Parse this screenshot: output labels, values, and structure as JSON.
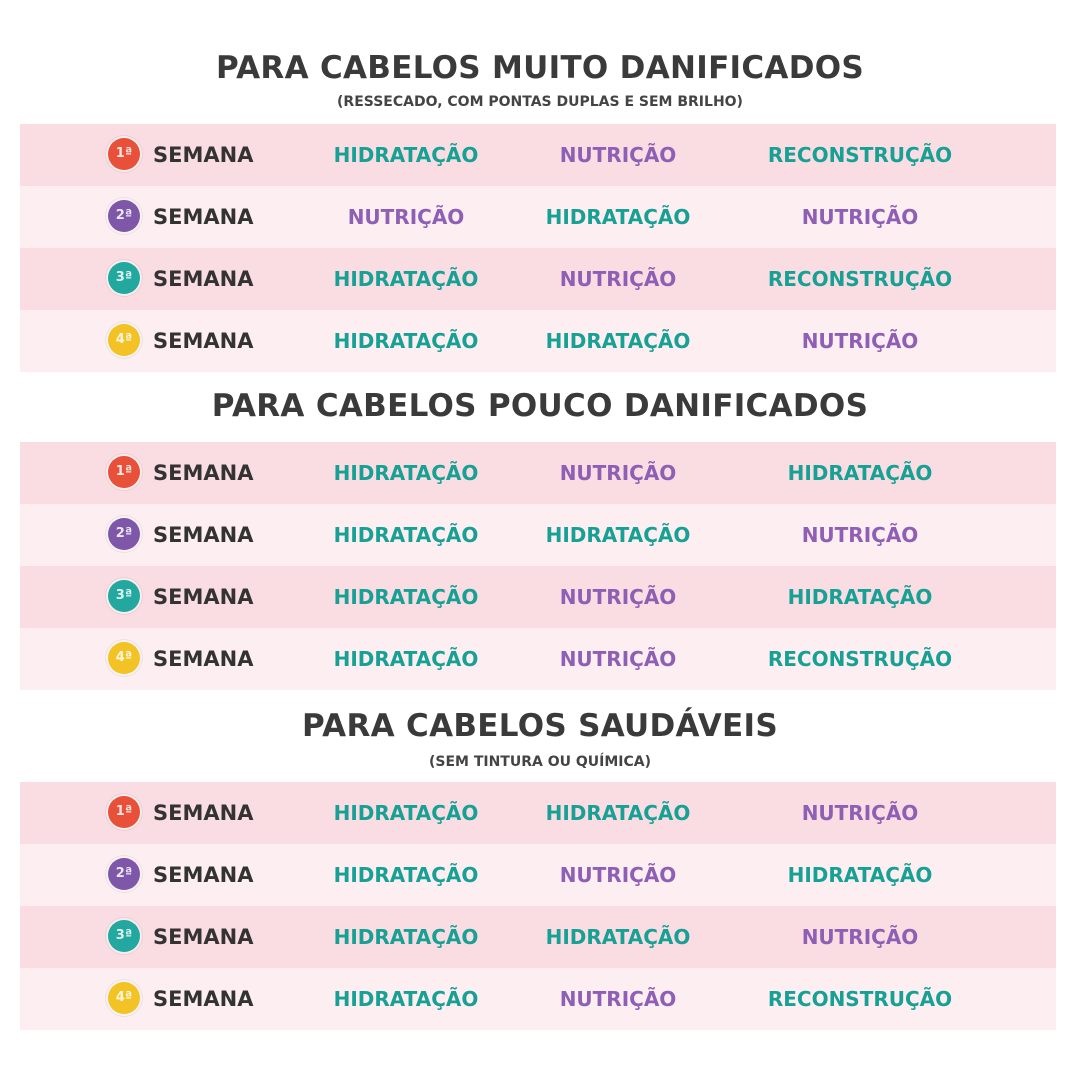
{
  "week_label": "SEMANA",
  "sections": [
    {
      "title": "PARA CABELOS MUITO DANIFICADOS",
      "subtitle": "(RESSECADO, COM PONTAS DUPLAS E SEM BRILHO)",
      "rows": [
        {
          "badge": "1ª",
          "cells": [
            "HIDRATAÇÃO",
            "NUTRIÇÃO",
            "RECONSTRUÇÃO"
          ]
        },
        {
          "badge": "2ª",
          "cells": [
            "NUTRIÇÃO",
            "HIDRATAÇÃO",
            "NUTRIÇÃO"
          ]
        },
        {
          "badge": "3ª",
          "cells": [
            "HIDRATAÇÃO",
            "NUTRIÇÃO",
            "RECONSTRUÇÃO"
          ]
        },
        {
          "badge": "4ª",
          "cells": [
            "HIDRATAÇÃO",
            "HIDRATAÇÃO",
            "NUTRIÇÃO"
          ]
        }
      ]
    },
    {
      "title": "PARA CABELOS POUCO DANIFICADOS",
      "subtitle": "",
      "rows": [
        {
          "badge": "1ª",
          "cells": [
            "HIDRATAÇÃO",
            "NUTRIÇÃO",
            "HIDRATAÇÃO"
          ]
        },
        {
          "badge": "2ª",
          "cells": [
            "HIDRATAÇÃO",
            "HIDRATAÇÃO",
            "NUTRIÇÃO"
          ]
        },
        {
          "badge": "3ª",
          "cells": [
            "HIDRATAÇÃO",
            "NUTRIÇÃO",
            "HIDRATAÇÃO"
          ]
        },
        {
          "badge": "4ª",
          "cells": [
            "HIDRATAÇÃO",
            "NUTRIÇÃO",
            "RECONSTRUÇÃO"
          ]
        }
      ]
    },
    {
      "title": "PARA CABELOS SAUDÁVEIS",
      "subtitle": "(SEM TINTURA OU QUÍMICA)",
      "rows": [
        {
          "badge": "1ª",
          "cells": [
            "HIDRATAÇÃO",
            "HIDRATAÇÃO",
            "NUTRIÇÃO"
          ]
        },
        {
          "badge": "2ª",
          "cells": [
            "HIDRATAÇÃO",
            "NUTRIÇÃO",
            "HIDRATAÇÃO"
          ]
        },
        {
          "badge": "3ª",
          "cells": [
            "HIDRATAÇÃO",
            "HIDRATAÇÃO",
            "NUTRIÇÃO"
          ]
        },
        {
          "badge": "4ª",
          "cells": [
            "HIDRATAÇÃO",
            "NUTRIÇÃO",
            "RECONSTRUÇÃO"
          ]
        }
      ]
    }
  ],
  "colors": {
    "hidratacao": "#17a094",
    "reconstrucao": "#17a094",
    "nutricao": "#8e5fb4",
    "week1": "#e8503a",
    "week2": "#7e57a8",
    "week3": "#22a89e",
    "week4": "#f3c224",
    "row_odd": "#fadde2",
    "row_even": "#fdeef1"
  }
}
